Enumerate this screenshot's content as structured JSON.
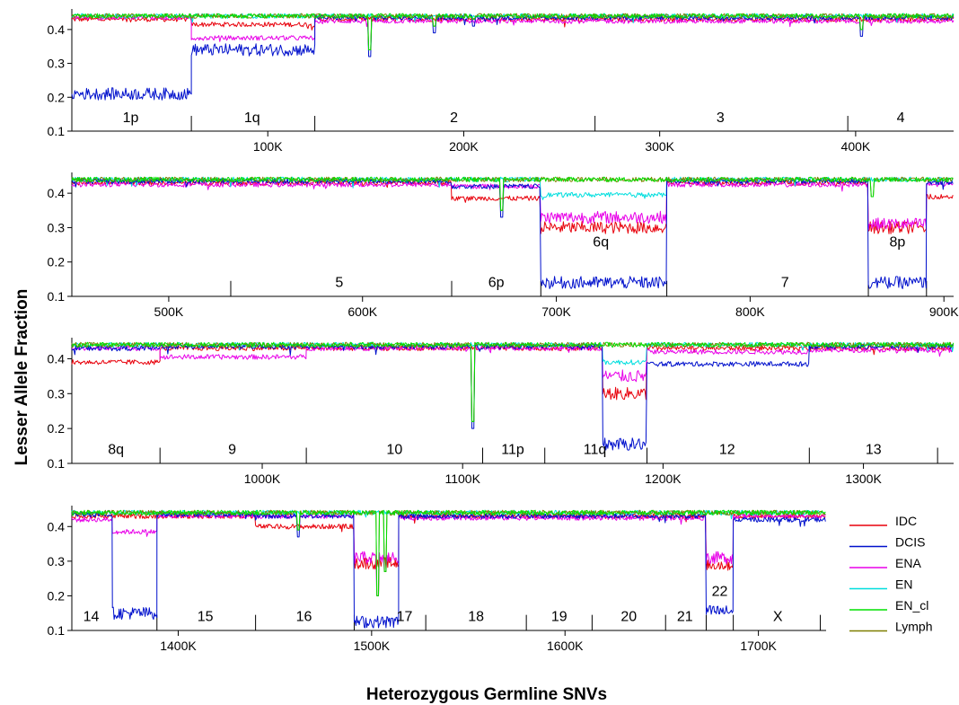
{
  "chart_data": {
    "type": "line",
    "xlabel": "Heterozygous Germline SNVs",
    "ylabel": "Lesser Allele Fraction",
    "y_ticks": [
      0.1,
      0.2,
      0.3,
      0.4
    ],
    "legend": {
      "placement": "right",
      "entries": [
        {
          "name": "IDC",
          "color": "#e8000b"
        },
        {
          "name": "DCIS",
          "color": "#0010cc"
        },
        {
          "name": "ENA",
          "color": "#e800e8"
        },
        {
          "name": "EN",
          "color": "#00dede"
        },
        {
          "name": "EN_cl",
          "color": "#00e000"
        },
        {
          "name": "Lymph",
          "color": "#7f7f00"
        }
      ]
    },
    "panels": [
      {
        "xlim": [
          0,
          450000
        ],
        "ylim": [
          0.1,
          0.45
        ],
        "x_ticks": [
          {
            "v": 100000,
            "label": "100K"
          },
          {
            "v": 200000,
            "label": "200K"
          },
          {
            "v": 300000,
            "label": "300K"
          },
          {
            "v": 400000,
            "label": "400K"
          }
        ],
        "boundaries": [
          61000,
          124000,
          267000,
          396000
        ],
        "chrom_labels": [
          {
            "text": "1p",
            "at": 30000
          },
          {
            "text": "1q",
            "at": 92000
          },
          {
            "text": "2",
            "at": 195000
          },
          {
            "text": "3",
            "at": 331000
          },
          {
            "text": "4",
            "at": 423000
          }
        ],
        "segments": [
          {
            "start": 0,
            "end": 61000,
            "IDC": 0.43,
            "DCIS": 0.21,
            "ENA": 0.435,
            "EN": 0.44,
            "EN_cl": 0.44,
            "Lymph": 0.44
          },
          {
            "start": 61000,
            "end": 124000,
            "IDC": 0.415,
            "DCIS": 0.34,
            "ENA": 0.375,
            "EN": 0.44,
            "EN_cl": 0.44,
            "Lymph": 0.44
          },
          {
            "start": 124000,
            "end": 450000,
            "IDC": 0.43,
            "DCIS": 0.435,
            "ENA": 0.425,
            "EN": 0.44,
            "EN_cl": 0.44,
            "Lymph": 0.44
          }
        ],
        "dips": [
          {
            "x": 152000,
            "depth": 0.32
          },
          {
            "x": 185000,
            "depth": 0.39
          },
          {
            "x": 205000,
            "depth": 0.41
          },
          {
            "x": 403000,
            "depth": 0.38
          }
        ]
      },
      {
        "xlim": [
          450000,
          905000
        ],
        "ylim": [
          0.1,
          0.45
        ],
        "x_ticks": [
          {
            "v": 500000,
            "label": "500K"
          },
          {
            "v": 600000,
            "label": "600K"
          },
          {
            "v": 700000,
            "label": "700K"
          },
          {
            "v": 800000,
            "label": "800K"
          },
          {
            "v": 900000,
            "label": "900K"
          }
        ],
        "boundaries": [
          532000,
          646000,
          692000,
          757000,
          861000,
          891000
        ],
        "chrom_labels": [
          {
            "text": "5",
            "at": 588000
          },
          {
            "text": "6p",
            "at": 669000
          },
          {
            "text": "7",
            "at": 818000
          }
        ],
        "inline_labels": [
          {
            "text": "6q",
            "at": 723000,
            "y": 0.245
          },
          {
            "text": "8p",
            "at": 876000,
            "y": 0.245
          }
        ],
        "segments": [
          {
            "start": 450000,
            "end": 646000,
            "IDC": 0.43,
            "DCIS": 0.435,
            "ENA": 0.425,
            "EN": 0.44,
            "EN_cl": 0.44,
            "Lymph": 0.44
          },
          {
            "start": 646000,
            "end": 692000,
            "IDC": 0.385,
            "DCIS": 0.42,
            "ENA": 0.42,
            "EN": 0.44,
            "EN_cl": 0.44,
            "Lymph": 0.44
          },
          {
            "start": 692000,
            "end": 757000,
            "IDC": 0.3,
            "DCIS": 0.14,
            "ENA": 0.33,
            "EN": 0.395,
            "EN_cl": 0.44,
            "Lymph": 0.44
          },
          {
            "start": 757000,
            "end": 861000,
            "IDC": 0.43,
            "DCIS": 0.435,
            "ENA": 0.425,
            "EN": 0.44,
            "EN_cl": 0.44,
            "Lymph": 0.44
          },
          {
            "start": 861000,
            "end": 891000,
            "IDC": 0.3,
            "DCIS": 0.14,
            "ENA": 0.31,
            "EN": 0.44,
            "EN_cl": 0.44,
            "Lymph": 0.44
          },
          {
            "start": 891000,
            "end": 905000,
            "IDC": 0.39,
            "DCIS": 0.43,
            "ENA": 0.425,
            "EN": 0.44,
            "EN_cl": 0.44,
            "Lymph": 0.44
          }
        ],
        "dips": [
          {
            "x": 672000,
            "depth": 0.33
          },
          {
            "x": 863000,
            "depth": 0.37
          }
        ]
      },
      {
        "xlim": [
          905000,
          1345000
        ],
        "ylim": [
          0.1,
          0.45
        ],
        "x_ticks": [
          {
            "v": 1000000,
            "label": "1000K"
          },
          {
            "v": 1100000,
            "label": "1100K"
          },
          {
            "v": 1200000,
            "label": "1200K"
          },
          {
            "v": 1300000,
            "label": "1300K"
          }
        ],
        "boundaries": [
          949000,
          1022000,
          1110000,
          1141000,
          1192000,
          1273000,
          1337000
        ],
        "chrom_labels": [
          {
            "text": "8q",
            "at": 927000
          },
          {
            "text": "9",
            "at": 985000
          },
          {
            "text": "10",
            "at": 1066000
          },
          {
            "text": "11p",
            "at": 1125000
          },
          {
            "text": "11q",
            "at": 1166000
          },
          {
            "text": "12",
            "at": 1232000
          },
          {
            "text": "13",
            "at": 1305000
          }
        ],
        "segments": [
          {
            "start": 905000,
            "end": 949000,
            "IDC": 0.39,
            "DCIS": 0.43,
            "ENA": 0.43,
            "EN": 0.44,
            "EN_cl": 0.44,
            "Lymph": 0.44
          },
          {
            "start": 949000,
            "end": 1022000,
            "IDC": 0.43,
            "DCIS": 0.435,
            "ENA": 0.405,
            "EN": 0.44,
            "EN_cl": 0.44,
            "Lymph": 0.44
          },
          {
            "start": 1022000,
            "end": 1170000,
            "IDC": 0.43,
            "DCIS": 0.435,
            "ENA": 0.43,
            "EN": 0.44,
            "EN_cl": 0.44,
            "Lymph": 0.44
          },
          {
            "start": 1170000,
            "end": 1192000,
            "IDC": 0.3,
            "DCIS": 0.155,
            "ENA": 0.35,
            "EN": 0.39,
            "EN_cl": 0.44,
            "Lymph": 0.44
          },
          {
            "start": 1192000,
            "end": 1273000,
            "IDC": 0.43,
            "DCIS": 0.385,
            "ENA": 0.42,
            "EN": 0.44,
            "EN_cl": 0.44,
            "Lymph": 0.44
          },
          {
            "start": 1273000,
            "end": 1345000,
            "IDC": 0.43,
            "DCIS": 0.435,
            "ENA": 0.425,
            "EN": 0.44,
            "EN_cl": 0.44,
            "Lymph": 0.44
          }
        ],
        "dips": [
          {
            "x": 1105000,
            "depth": 0.2
          }
        ]
      },
      {
        "xlim": [
          1345000,
          1735000
        ],
        "ylim": [
          0.1,
          0.45
        ],
        "x_ticks": [
          {
            "v": 1400000,
            "label": "1400K"
          },
          {
            "v": 1500000,
            "label": "1500K"
          },
          {
            "v": 1600000,
            "label": "1600K"
          },
          {
            "v": 1700000,
            "label": "1700K"
          }
        ],
        "boundaries": [
          1389000,
          1440000,
          1491000,
          1528000,
          1580000,
          1614000,
          1652000,
          1673000,
          1687000,
          1732000
        ],
        "chrom_labels": [
          {
            "text": "14",
            "at": 1355000
          },
          {
            "text": "15",
            "at": 1414000
          },
          {
            "text": "16",
            "at": 1465000
          },
          {
            "text": "17",
            "at": 1517000
          },
          {
            "text": "18",
            "at": 1554000
          },
          {
            "text": "19",
            "at": 1597000
          },
          {
            "text": "20",
            "at": 1633000
          },
          {
            "text": "21",
            "at": 1662000
          },
          {
            "text": "X",
            "at": 1710000
          }
        ],
        "inline_labels": [
          {
            "text": "22",
            "at": 1680000,
            "y": 0.2
          }
        ],
        "segments": [
          {
            "start": 1345000,
            "end": 1366000,
            "IDC": 0.43,
            "DCIS": 0.435,
            "ENA": 0.42,
            "EN": 0.44,
            "EN_cl": 0.44,
            "Lymph": 0.44
          },
          {
            "start": 1366000,
            "end": 1389000,
            "IDC": 0.43,
            "DCIS": 0.15,
            "ENA": 0.385,
            "EN": 0.44,
            "EN_cl": 0.44,
            "Lymph": 0.44
          },
          {
            "start": 1389000,
            "end": 1440000,
            "IDC": 0.43,
            "DCIS": 0.435,
            "ENA": 0.43,
            "EN": 0.44,
            "EN_cl": 0.44,
            "Lymph": 0.44
          },
          {
            "start": 1440000,
            "end": 1491000,
            "IDC": 0.4,
            "DCIS": 0.43,
            "ENA": 0.43,
            "EN": 0.44,
            "EN_cl": 0.44,
            "Lymph": 0.44
          },
          {
            "start": 1491000,
            "end": 1514000,
            "IDC": 0.295,
            "DCIS": 0.125,
            "ENA": 0.31,
            "EN": 0.44,
            "EN_cl": 0.44,
            "Lymph": 0.44
          },
          {
            "start": 1514000,
            "end": 1673000,
            "IDC": 0.43,
            "DCIS": 0.43,
            "ENA": 0.425,
            "EN": 0.44,
            "EN_cl": 0.44,
            "Lymph": 0.44
          },
          {
            "start": 1673000,
            "end": 1687000,
            "IDC": 0.29,
            "DCIS": 0.155,
            "ENA": 0.31,
            "EN": 0.44,
            "EN_cl": 0.44,
            "Lymph": 0.44
          },
          {
            "start": 1687000,
            "end": 1735000,
            "IDC": 0.43,
            "DCIS": 0.42,
            "ENA": 0.43,
            "EN": 0.44,
            "EN_cl": 0.44,
            "Lymph": 0.44
          }
        ],
        "dips": [
          {
            "x": 1462000,
            "depth": 0.37
          },
          {
            "x": 1503000,
            "depth": 0.18
          },
          {
            "x": 1507000,
            "depth": 0.25
          }
        ]
      }
    ]
  }
}
